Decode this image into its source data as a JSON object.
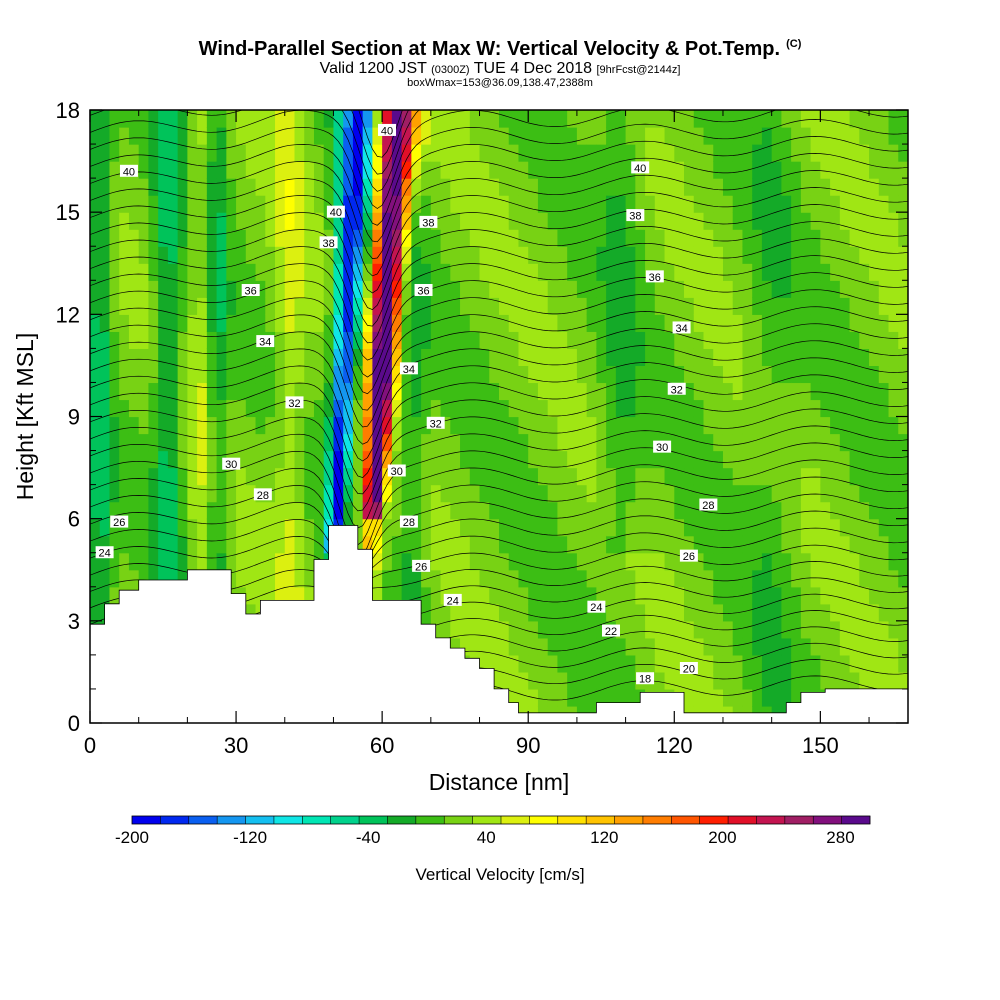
{
  "title_parts": {
    "main": "Wind-Parallel Section at Max W: Vertical Velocity & Pot.Temp.",
    "mark": "(C)"
  },
  "subtitle_parts": {
    "a": "Valid 1200 JST ",
    "b": "(0300Z)",
    "c": " TUE 4 Dec 2018 ",
    "d": "[9hrFcst@2144z]"
  },
  "subtitle2": "boxWmax=153@36.09,138.47,2388m",
  "chart_data": {
    "type": "heatmap",
    "title": "Wind-Parallel Section at Max W: Vertical Velocity & Pot.Temp. (C)",
    "xlabel": "Distance [nm]",
    "ylabel": "Height [Kft MSL]",
    "xlim": [
      0,
      168
    ],
    "ylim": [
      0,
      18
    ],
    "x_ticks": [
      0,
      30,
      60,
      90,
      120,
      150
    ],
    "y_ticks": [
      0,
      3,
      6,
      9,
      12,
      15,
      18
    ],
    "colorbar": {
      "label": "Vertical Velocity [cm/s]",
      "tick_labels": [
        -200,
        -120,
        -40,
        40,
        120,
        200,
        280
      ],
      "min": -200,
      "max": 300,
      "step": 20,
      "colors": [
        "#0000ee",
        "#0028f0",
        "#0a5ff0",
        "#1496f0",
        "#14bff0",
        "#10e6e6",
        "#00e6b4",
        "#00d28c",
        "#00c35a",
        "#14aa28",
        "#3cbe14",
        "#78d214",
        "#a0e614",
        "#dcf010",
        "#ffff00",
        "#ffe100",
        "#ffc300",
        "#ffa000",
        "#ff7d00",
        "#ff5500",
        "#ff1e00",
        "#e10f28",
        "#c31450",
        "#a01e64",
        "#82107d",
        "#5a0a8c"
      ]
    },
    "contour_variable": "potential temperature (C)",
    "contour_labels": [
      {
        "v": "40",
        "x": 8,
        "y": 16.2
      },
      {
        "v": "40",
        "x": 50.5,
        "y": 15.0
      },
      {
        "v": "40",
        "x": 61,
        "y": 17.4
      },
      {
        "v": "40",
        "x": 113,
        "y": 16.3
      },
      {
        "v": "38",
        "x": 49,
        "y": 14.1
      },
      {
        "v": "38",
        "x": 69.5,
        "y": 14.7
      },
      {
        "v": "38",
        "x": 112,
        "y": 14.9
      },
      {
        "v": "36",
        "x": 33,
        "y": 12.7
      },
      {
        "v": "36",
        "x": 68.5,
        "y": 12.7
      },
      {
        "v": "36",
        "x": 116,
        "y": 13.1
      },
      {
        "v": "34",
        "x": 36,
        "y": 11.2
      },
      {
        "v": "34",
        "x": 65.5,
        "y": 10.4
      },
      {
        "v": "34",
        "x": 121.5,
        "y": 11.6
      },
      {
        "v": "32",
        "x": 42,
        "y": 9.4
      },
      {
        "v": "32",
        "x": 71,
        "y": 8.8
      },
      {
        "v": "32",
        "x": 120.5,
        "y": 9.8
      },
      {
        "v": "30",
        "x": 29,
        "y": 7.6
      },
      {
        "v": "30",
        "x": 63,
        "y": 7.4
      },
      {
        "v": "30",
        "x": 117.5,
        "y": 8.1
      },
      {
        "v": "28",
        "x": 35.5,
        "y": 6.7
      },
      {
        "v": "28",
        "x": 65.5,
        "y": 5.9
      },
      {
        "v": "28",
        "x": 127,
        "y": 6.4
      },
      {
        "v": "26",
        "x": 6,
        "y": 5.9
      },
      {
        "v": "26",
        "x": 68,
        "y": 4.6
      },
      {
        "v": "26",
        "x": 123,
        "y": 4.9
      },
      {
        "v": "24",
        "x": 3,
        "y": 5.0
      },
      {
        "v": "24",
        "x": 74.5,
        "y": 3.6
      },
      {
        "v": "24",
        "x": 104,
        "y": 3.4
      },
      {
        "v": "22",
        "x": 107,
        "y": 2.7
      },
      {
        "v": "20",
        "x": 123,
        "y": 1.6
      },
      {
        "v": "18",
        "x": 114,
        "y": 1.3
      }
    ],
    "terrain_profile": [
      [
        0,
        2.9
      ],
      [
        3,
        2.9
      ],
      [
        3,
        3.5
      ],
      [
        6,
        3.5
      ],
      [
        6,
        3.9
      ],
      [
        10,
        3.9
      ],
      [
        10,
        4.2
      ],
      [
        20,
        4.2
      ],
      [
        20,
        4.5
      ],
      [
        29,
        4.5
      ],
      [
        29,
        3.8
      ],
      [
        32,
        3.8
      ],
      [
        32,
        3.2
      ],
      [
        35,
        3.2
      ],
      [
        35,
        3.6
      ],
      [
        46,
        3.6
      ],
      [
        46,
        4.8
      ],
      [
        49,
        4.8
      ],
      [
        49,
        5.8
      ],
      [
        55,
        5.8
      ],
      [
        55,
        5.1
      ],
      [
        58,
        5.1
      ],
      [
        58,
        3.6
      ],
      [
        68,
        3.6
      ],
      [
        68,
        2.9
      ],
      [
        71,
        2.9
      ],
      [
        71,
        2.5
      ],
      [
        74,
        2.5
      ],
      [
        74,
        2.2
      ],
      [
        77,
        2.2
      ],
      [
        77,
        1.9
      ],
      [
        80,
        1.9
      ],
      [
        80,
        1.6
      ],
      [
        83,
        1.6
      ],
      [
        83,
        1.0
      ],
      [
        86,
        1.0
      ],
      [
        86,
        0.6
      ],
      [
        88,
        0.6
      ],
      [
        88,
        0.3
      ],
      [
        104,
        0.3
      ],
      [
        104,
        0.6
      ],
      [
        113,
        0.6
      ],
      [
        113,
        0.9
      ],
      [
        122,
        0.9
      ],
      [
        122,
        0.3
      ],
      [
        143,
        0.3
      ],
      [
        143,
        0.6
      ],
      [
        146,
        0.6
      ],
      [
        146,
        0.9
      ],
      [
        151,
        0.9
      ],
      [
        151,
        1.0
      ],
      [
        168,
        1.0
      ]
    ],
    "updraft_max": 153
  }
}
